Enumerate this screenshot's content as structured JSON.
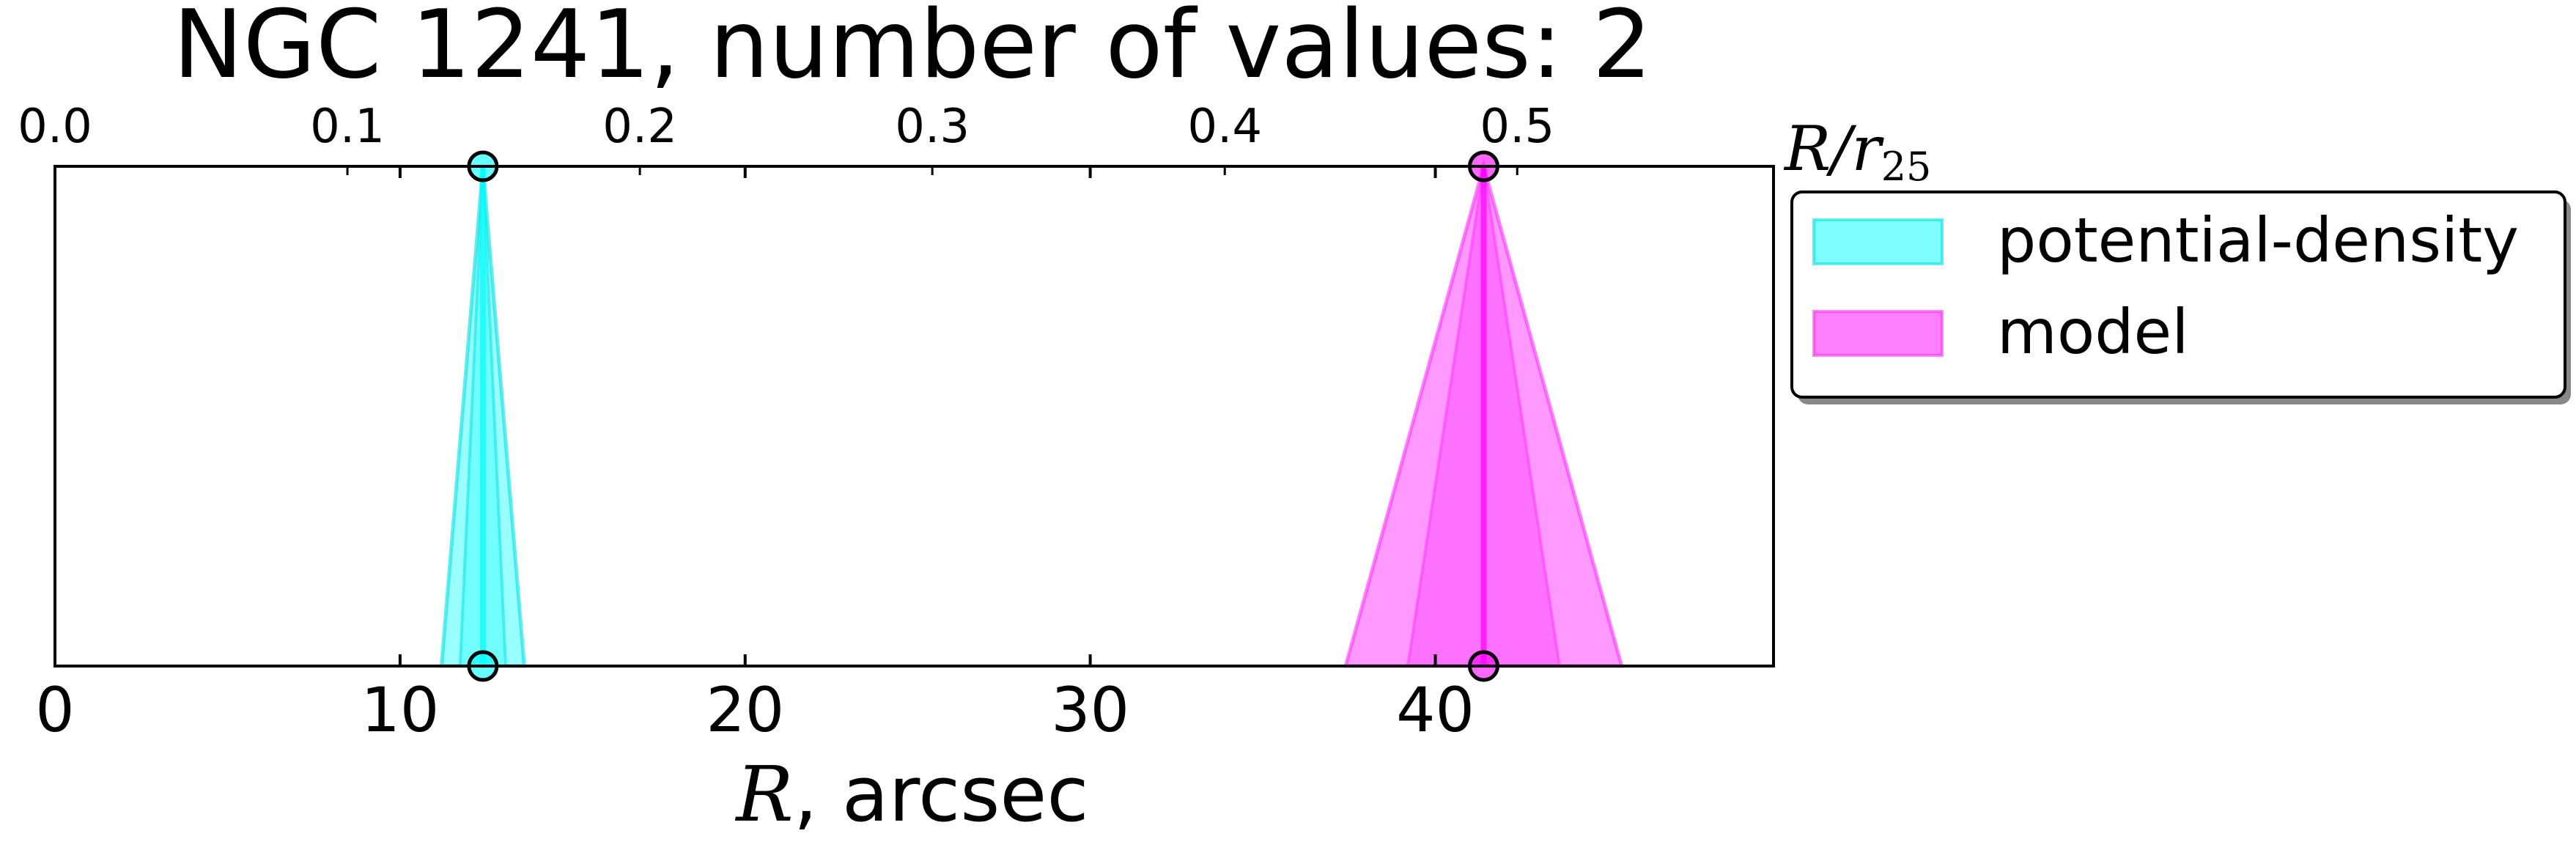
{
  "chart_data": {
    "type": "area",
    "title": "NGC 1241, number of values: 2",
    "xlabel": "R",
    "xlabel_suffix": ", arcsec",
    "x2label": "R/r",
    "x2label_sub": "25",
    "xlim": [
      0,
      49.8
    ],
    "x_ticks": [
      0,
      10,
      20,
      30,
      40
    ],
    "x_tick_labels": [
      "0",
      "10",
      "20",
      "30",
      "40"
    ],
    "x2_ticks": [
      0.0,
      0.1,
      0.2,
      0.3,
      0.4,
      0.5
    ],
    "x2_tick_labels": [
      "0.0",
      "0.1",
      "0.2",
      "0.3",
      "0.4",
      "0.5"
    ],
    "x2_per_x": 0.0118,
    "grid": false,
    "legend_position": "outside-right-top",
    "series": [
      {
        "name": "potential-density",
        "color": "#00ffff",
        "edge_color": "#00e0e0",
        "value": 12.4,
        "err_low": 11.2,
        "err_high": 13.6
      },
      {
        "name": "model",
        "color": "#ff00ff",
        "edge_color": "#ff33ff",
        "value": 41.4,
        "err_low": 37.4,
        "err_high": 45.4
      }
    ]
  }
}
